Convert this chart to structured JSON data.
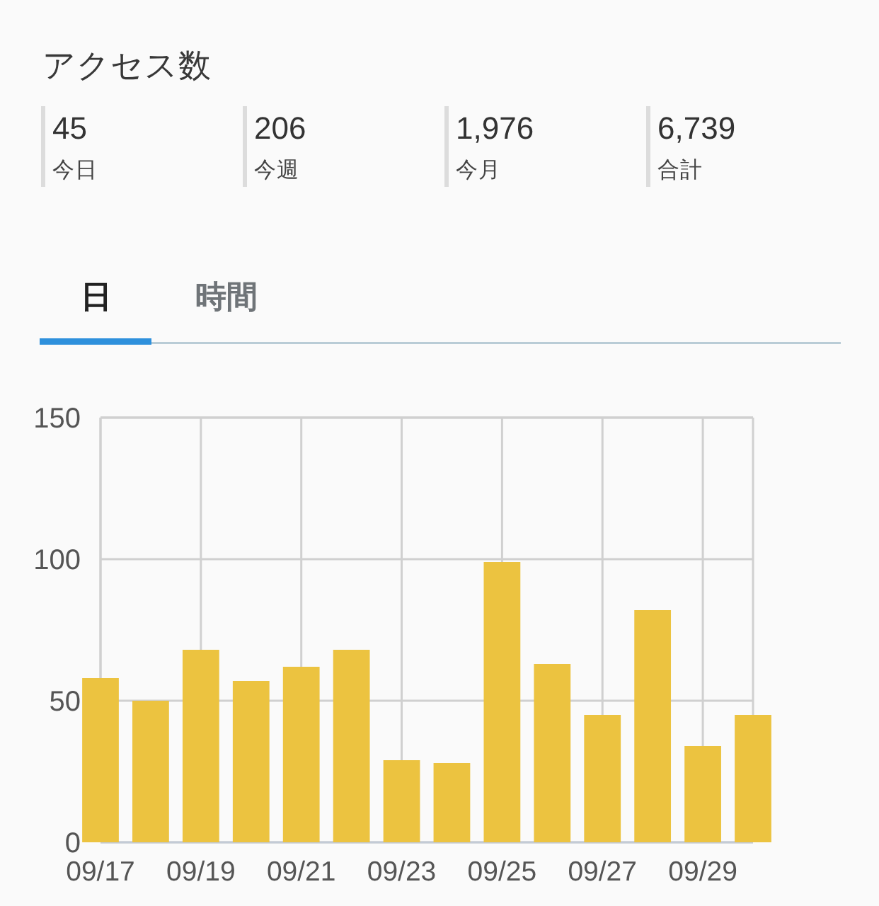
{
  "chart_data": [
    {
      "type": "other",
      "title": "アクセス数",
      "annotations": [
        "45",
        "今日",
        "206",
        "今週",
        "1,976",
        "今月",
        "6,739",
        "合計"
      ]
    },
    {
      "type": "bar",
      "annotations": [
        "日",
        "時間"
      ],
      "categories": [
        "09/17",
        null,
        "09/19",
        null,
        "09/21",
        null,
        "09/23",
        null,
        "09/25",
        null,
        "09/27",
        null,
        "09/29",
        null
      ],
      "values": [
        58,
        50,
        68,
        57,
        62,
        68,
        29,
        28,
        99,
        63,
        45,
        82,
        34,
        45
      ],
      "color": "#ecc340",
      "ylim": [
        0,
        150
      ],
      "yticks": [
        0,
        50,
        100,
        150
      ],
      "grid": true
    }
  ]
}
